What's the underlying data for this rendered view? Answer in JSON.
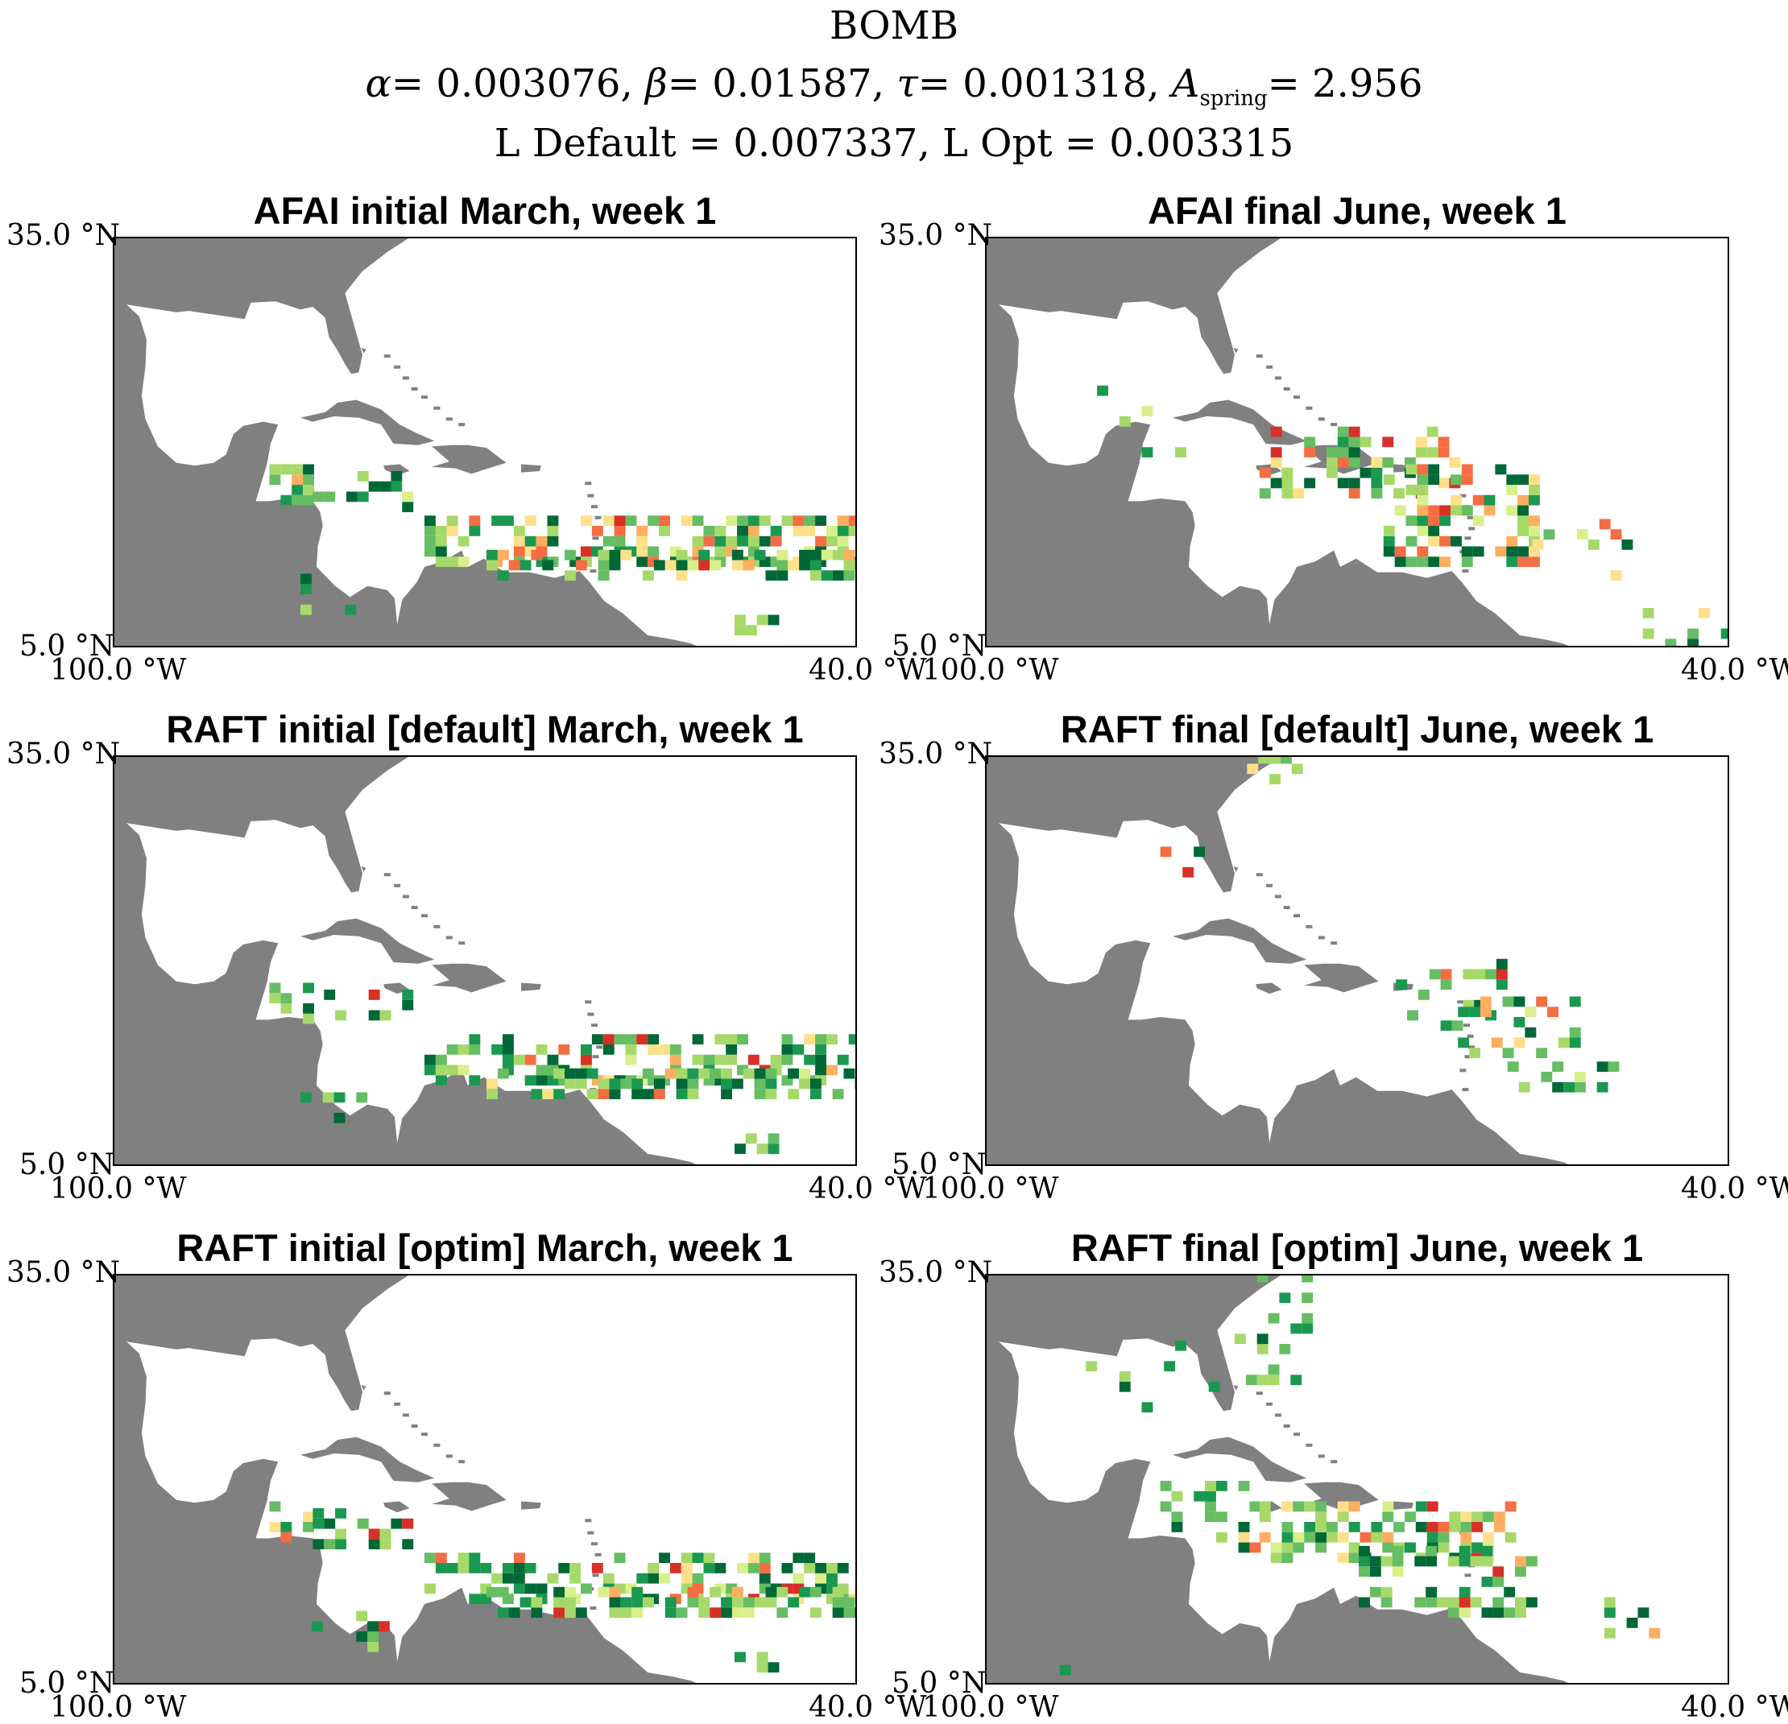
{
  "figure": {
    "title": "BOMB",
    "param_line": {
      "alpha_label": "α =",
      "alpha": "0.003076",
      "beta_label": "β =",
      "beta": "0.01587",
      "tau_label": "τ =",
      "tau": "0.001318",
      "aspring_label": "A",
      "aspring_sub": "spring",
      "aspring": "2.956"
    },
    "loss_line": "L Default = 0.007337, L Opt =  0.003315"
  },
  "colors": {
    "land": "#808080",
    "ocean": "#ffffff",
    "colormap": [
      "#006837",
      "#1a9850",
      "#66bd63",
      "#a6d96a",
      "#d9ef8b",
      "#fee08b",
      "#fdae61",
      "#f46d43",
      "#d73027",
      "#a50026"
    ]
  },
  "map_extent": {
    "lon": [
      -100.0,
      -40.0
    ],
    "lat": [
      5.0,
      35.0
    ],
    "lat_top_label": "35.0 °N",
    "lat_bottom_label": "5.0 °N",
    "lon_left_label": "100.0 °W",
    "lon_right_label": "40.0 °W"
  },
  "panels": [
    {
      "title": "AFAI initial March, week 1",
      "pattern": "afai_initial"
    },
    {
      "title": "AFAI final June, week 1",
      "pattern": "afai_final"
    },
    {
      "title": "RAFT initial [default] March, week 1",
      "pattern": "raft_initial"
    },
    {
      "title": "RAFT final [default] June, week 1",
      "pattern": "raft_final_default"
    },
    {
      "title": "RAFT initial [optim] March, week 1",
      "pattern": "raft_initial"
    },
    {
      "title": "RAFT final [optim] June, week 1",
      "pattern": "raft_final_optim"
    }
  ]
}
